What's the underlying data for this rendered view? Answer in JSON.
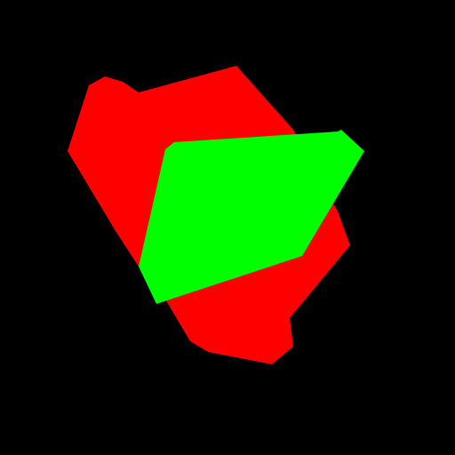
{
  "colors": {
    "background": "#000000",
    "red_region": "#ff0000",
    "green_region": "#00ff00"
  },
  "regions": [
    {
      "name": "red-region",
      "color_key": "red_region"
    },
    {
      "name": "green-region",
      "color_key": "green_region"
    }
  ]
}
